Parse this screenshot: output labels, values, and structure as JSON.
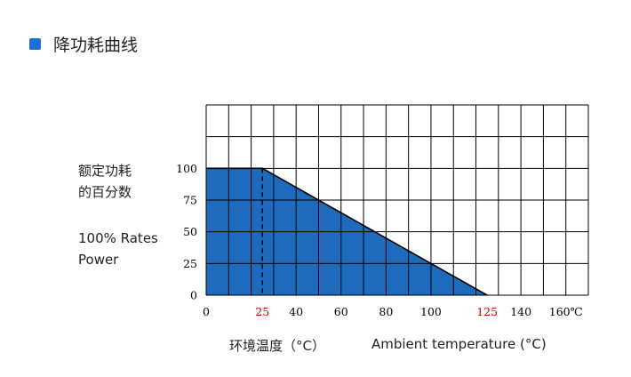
{
  "header": {
    "title": "降功耗曲线"
  },
  "chart_data": {
    "type": "area",
    "x_ticks": [
      0,
      25,
      40,
      60,
      80,
      100,
      125,
      140,
      160
    ],
    "x_tick_labels": [
      "0",
      "25",
      "40",
      "60",
      "80",
      "100",
      "125",
      "140",
      "160℃"
    ],
    "highlight_ticks": [
      25,
      125
    ],
    "y_ticks": [
      0,
      25,
      50,
      75,
      100
    ],
    "x": [
      0,
      25,
      125
    ],
    "y": [
      100,
      100,
      0
    ],
    "xlim": [
      0,
      170
    ],
    "ylim": [
      0,
      150
    ],
    "xlabel_cn": "环境温度（°C）",
    "xlabel_en": "Ambient temperature (°C)",
    "ylabel_cn": [
      "额定功耗",
      "的百分数"
    ],
    "ylabel_en": [
      "100% Rates",
      "Power"
    ],
    "grid": true,
    "colors": {
      "fill": "#1e6abc",
      "highlight_tick": "#cc0000",
      "line": "#000000"
    }
  }
}
